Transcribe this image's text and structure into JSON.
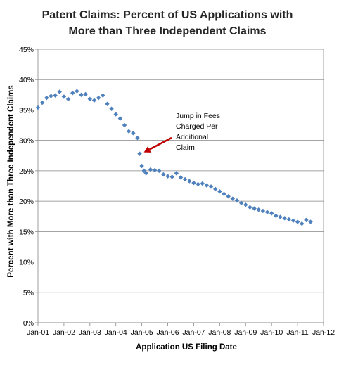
{
  "chart_data": {
    "type": "scatter",
    "title_lines": [
      "Patent Claims: Percent of US Applications with",
      "More than Three Independent Claims"
    ],
    "xlabel": "Application US Filing Date",
    "ylabel": "Percent with More than Three Independent  Claims",
    "ylim": [
      0,
      45
    ],
    "y_ticks": [
      0,
      5,
      10,
      15,
      20,
      25,
      30,
      35,
      40,
      45
    ],
    "y_tick_labels": [
      "0%",
      "5%",
      "10%",
      "15%",
      "20%",
      "25%",
      "30%",
      "35%",
      "40%",
      "45%"
    ],
    "xlim": [
      "2001-01",
      "2012-01"
    ],
    "x_tick_labels": [
      "Jan-01",
      "Jan-02",
      "Jan-03",
      "Jan-04",
      "Jan-05",
      "Jan-06",
      "Jan-07",
      "Jan-08",
      "Jan-09",
      "Jan-10",
      "Jan-11",
      "Jan-12"
    ],
    "grid": "horizontal",
    "marker_color": "#4f81bd",
    "annotation": {
      "lines": [
        "Jump in Fees",
        "Charged Per",
        "Additional",
        "Claim"
      ],
      "arrow_color": "#c00000",
      "points_to": {
        "x": "2004-12",
        "y": 27.8
      }
    },
    "series": [
      {
        "x": [
          "2001-01",
          "2001-03",
          "2001-05",
          "2001-07",
          "2001-09",
          "2001-11",
          "2002-01",
          "2002-03",
          "2002-05",
          "2002-07",
          "2002-09",
          "2002-11",
          "2003-01",
          "2003-03",
          "2003-05",
          "2003-07",
          "2003-09",
          "2003-11",
          "2004-01",
          "2004-03",
          "2004-05",
          "2004-07",
          "2004-09",
          "2004-11",
          "2004-12",
          "2005-01",
          "2005-02",
          "2005-03",
          "2005-05",
          "2005-07",
          "2005-09",
          "2005-11",
          "2006-01",
          "2006-03",
          "2006-05",
          "2006-07",
          "2006-09",
          "2006-11",
          "2007-01",
          "2007-03",
          "2007-05",
          "2007-07",
          "2007-09",
          "2007-11",
          "2008-01",
          "2008-03",
          "2008-05",
          "2008-07",
          "2008-09",
          "2008-11",
          "2009-01",
          "2009-03",
          "2009-05",
          "2009-07",
          "2009-09",
          "2009-11",
          "2010-01",
          "2010-03",
          "2010-05",
          "2010-07",
          "2010-09",
          "2010-11",
          "2011-01",
          "2011-03",
          "2011-05",
          "2011-07"
        ],
        "values": [
          35.4,
          36.2,
          37.0,
          37.3,
          37.4,
          38.0,
          37.2,
          36.8,
          37.8,
          38.1,
          37.5,
          37.6,
          36.8,
          36.6,
          37.0,
          37.4,
          36.0,
          35.2,
          34.3,
          33.6,
          32.5,
          31.5,
          31.2,
          30.4,
          27.8,
          25.8,
          25.0,
          24.6,
          25.2,
          25.1,
          25.0,
          24.4,
          24.1,
          24.0,
          24.6,
          23.9,
          23.6,
          23.3,
          23.0,
          22.8,
          22.9,
          22.6,
          22.4,
          22.0,
          21.6,
          21.2,
          20.8,
          20.4,
          20.1,
          19.7,
          19.4,
          19.0,
          18.8,
          18.6,
          18.4,
          18.2,
          18.0,
          17.6,
          17.4,
          17.2,
          17.0,
          16.8,
          16.6,
          16.3,
          16.9,
          16.6
        ]
      }
    ]
  }
}
